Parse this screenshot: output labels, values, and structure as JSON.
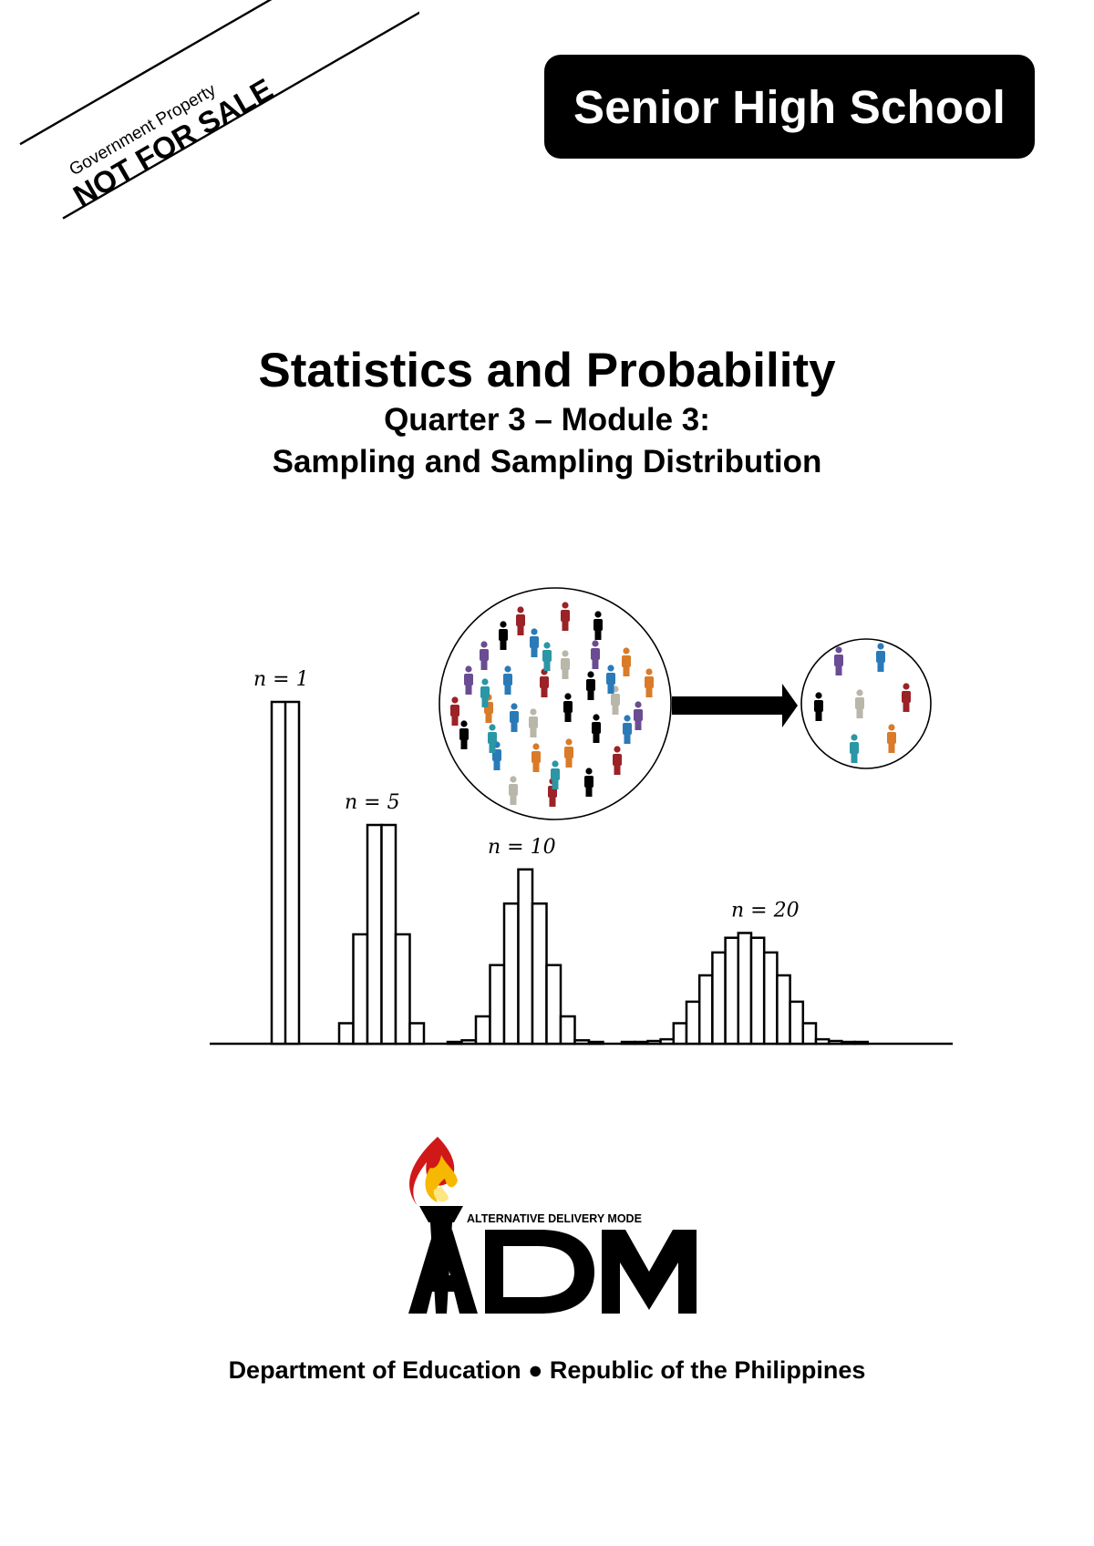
{
  "ribbon": {
    "top_text": "Government Property",
    "main_text": "NOT FOR SALE"
  },
  "badge": {
    "label": "Senior High School"
  },
  "title": {
    "main": "Statistics and Probability",
    "line1": "Quarter 3 – Module 3:",
    "line2": "Sampling and Sampling Distribution"
  },
  "chart_data": {
    "type": "bar",
    "panels": [
      {
        "label": "n = 1",
        "values": [
          1.0
        ]
      },
      {
        "label": "n = 5",
        "values": [
          0.06,
          0.32,
          0.64,
          0.64,
          0.32,
          0.06
        ]
      },
      {
        "label": "n = 10",
        "values": [
          0.005,
          0.01,
          0.08,
          0.23,
          0.41,
          0.51,
          0.41,
          0.23,
          0.08,
          0.01,
          0.005
        ]
      },
      {
        "label": "n = 20",
        "values": [
          0.002,
          0.004,
          0.008,
          0.013,
          0.06,
          0.123,
          0.2,
          0.267,
          0.31,
          0.324,
          0.31,
          0.267,
          0.2,
          0.123,
          0.06,
          0.013,
          0.008,
          0.004,
          0.002
        ]
      }
    ],
    "population_figures": 36,
    "sample_figures": 7,
    "figure_colors": [
      "#000000",
      "#6a4c93",
      "#2a7ab8",
      "#9b2226",
      "#d97b29",
      "#b9b6aa",
      "#2a96a6"
    ]
  },
  "logo": {
    "tagline": "ALTERNATIVE DELIVERY MODE",
    "word": "ADM"
  },
  "footer": {
    "text": "Department of Education ● Republic of the Philippines"
  }
}
